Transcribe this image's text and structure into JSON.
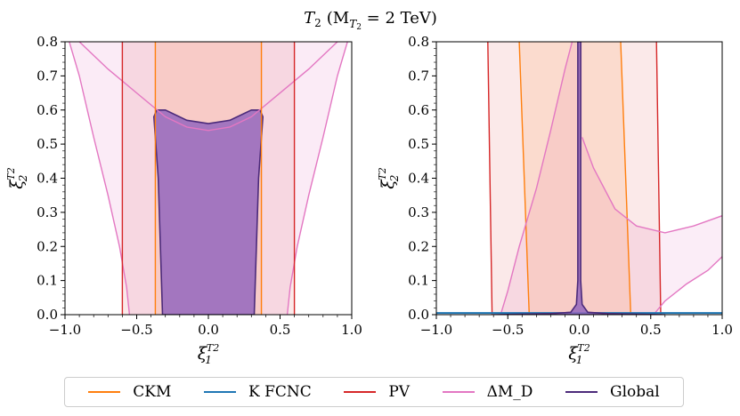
{
  "figure": {
    "title": "T",
    "title_sub": "2",
    "title_paren": "(M",
    "title_paren_sub": "T",
    "title_paren_subsub": "2",
    "title_rest": " = 2 TeV)"
  },
  "legend": {
    "items": [
      {
        "label": "CKM",
        "color": "#ff7f0e"
      },
      {
        "label": "K FCNC",
        "color": "#1f77b4"
      },
      {
        "label": "PV",
        "color": "#d62728"
      },
      {
        "label": "ΔM_D",
        "color": "#e377c2"
      },
      {
        "label": "Global",
        "color": "#4b2a7a"
      }
    ]
  },
  "chart_data": [
    {
      "type": "area",
      "title": "",
      "xlabel": "ξ1^T2",
      "ylabel": "ξ2^T2",
      "xlim": [
        -1.0,
        1.0
      ],
      "ylim": [
        0.0,
        0.8
      ],
      "xticks": [
        "−1.0",
        "−0.5",
        "0.0",
        "0.5",
        "1.0"
      ],
      "yticks": [
        "0.0",
        "0.1",
        "0.2",
        "0.3",
        "0.4",
        "0.5",
        "0.6",
        "0.7",
        "0.8"
      ],
      "series": [
        {
          "name": "PV",
          "color": "#d62728",
          "region": {
            "x_min": -0.6,
            "x_max": 0.6
          }
        },
        {
          "name": "CKM",
          "color": "#ff7f0e",
          "region": {
            "x_min": -0.37,
            "x_max": 0.37
          }
        },
        {
          "name": "ΔM_D",
          "color": "#e377c2",
          "outer_boundary": [
            [
              -0.97,
              0.8
            ],
            [
              -0.9,
              0.7
            ],
            [
              -0.8,
              0.52
            ],
            [
              -0.7,
              0.35
            ],
            [
              -0.62,
              0.2
            ],
            [
              -0.57,
              0.08
            ],
            [
              -0.55,
              0.0
            ]
          ],
          "inner_boundary": [
            [
              -0.9,
              0.8
            ],
            [
              -0.7,
              0.72
            ],
            [
              -0.5,
              0.65
            ],
            [
              -0.3,
              0.58
            ],
            [
              -0.15,
              0.55
            ],
            [
              0.0,
              0.54
            ],
            [
              0.15,
              0.55
            ],
            [
              0.3,
              0.58
            ],
            [
              0.5,
              0.65
            ],
            [
              0.7,
              0.72
            ],
            [
              0.9,
              0.8
            ]
          ]
        },
        {
          "name": "Global",
          "color": "#4b2a7a",
          "boundary": [
            [
              -0.32,
              0.0
            ],
            [
              -0.35,
              0.4
            ],
            [
              -0.38,
              0.58
            ],
            [
              -0.36,
              0.6
            ],
            [
              -0.3,
              0.6
            ],
            [
              -0.15,
              0.57
            ],
            [
              0.0,
              0.56
            ],
            [
              0.15,
              0.57
            ],
            [
              0.3,
              0.6
            ],
            [
              0.36,
              0.6
            ],
            [
              0.38,
              0.58
            ],
            [
              0.35,
              0.4
            ],
            [
              0.32,
              0.0
            ]
          ]
        }
      ]
    },
    {
      "type": "area",
      "title": "",
      "xlabel": "ξ1^T2",
      "ylabel": "ξ2^T2",
      "xlim": [
        -1.0,
        1.0
      ],
      "ylim": [
        0.0,
        0.8
      ],
      "xticks": [
        "−1.0",
        "−0.5",
        "0.0",
        "0.5",
        "1.0"
      ],
      "yticks": [
        "0.0",
        "0.1",
        "0.2",
        "0.3",
        "0.4",
        "0.5",
        "0.6",
        "0.7",
        "0.8"
      ],
      "series": [
        {
          "name": "PV",
          "color": "#d62728",
          "left_edge": [
            [
              -0.64,
              0.8
            ],
            [
              -0.61,
              0.0
            ]
          ],
          "right_edge": [
            [
              0.54,
              0.8
            ],
            [
              0.57,
              0.0
            ]
          ]
        },
        {
          "name": "CKM",
          "color": "#ff7f0e",
          "left_edge": [
            [
              -0.42,
              0.8
            ],
            [
              -0.35,
              0.0
            ]
          ],
          "right_edge": [
            [
              0.29,
              0.8
            ],
            [
              0.36,
              0.0
            ]
          ]
        },
        {
          "name": "ΔM_D",
          "color": "#e377c2",
          "left_boundary": [
            [
              -0.55,
              0.0
            ],
            [
              -0.5,
              0.07
            ],
            [
              -0.42,
              0.2
            ],
            [
              -0.3,
              0.37
            ],
            [
              -0.2,
              0.54
            ],
            [
              -0.1,
              0.72
            ],
            [
              -0.05,
              0.8
            ]
          ],
          "upper_right": [
            [
              0.02,
              0.52
            ],
            [
              0.1,
              0.43
            ],
            [
              0.25,
              0.31
            ],
            [
              0.4,
              0.26
            ],
            [
              0.6,
              0.24
            ],
            [
              0.8,
              0.26
            ],
            [
              1.0,
              0.29
            ]
          ],
          "lower_right": [
            [
              0.52,
              0.0
            ],
            [
              0.6,
              0.04
            ],
            [
              0.75,
              0.09
            ],
            [
              0.9,
              0.13
            ],
            [
              1.0,
              0.17
            ]
          ]
        },
        {
          "name": "K FCNC",
          "color": "#1f77b4",
          "line": [
            [
              -1.0,
              0.005
            ],
            [
              1.0,
              0.005
            ]
          ]
        },
        {
          "name": "Global",
          "color": "#4b2a7a",
          "boundary": [
            [
              -0.6,
              0.0
            ],
            [
              -0.2,
              0.003
            ],
            [
              -0.06,
              0.007
            ],
            [
              -0.02,
              0.03
            ],
            [
              -0.01,
              0.1
            ],
            [
              -0.01,
              0.8
            ],
            [
              0.01,
              0.8
            ],
            [
              0.01,
              0.1
            ],
            [
              0.02,
              0.03
            ],
            [
              0.06,
              0.007
            ],
            [
              0.2,
              0.003
            ],
            [
              0.6,
              0.0
            ]
          ]
        }
      ]
    }
  ]
}
